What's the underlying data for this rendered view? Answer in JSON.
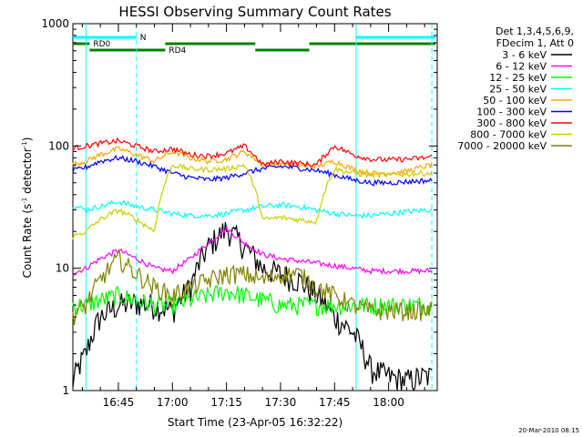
{
  "chart_data": {
    "type": "line",
    "title": "HESSI Observing Summary Count Rates",
    "xlabel": "Start Time (23-Apr-05 16:32:22)",
    "ylabel": "Count Rate (s",
    "ylabel_sup1": "-1",
    "ylabel_mid": " detector",
    "ylabel_sup2": "-1",
    "ylabel_end": ")",
    "y_scale": "log",
    "ylim": [
      1,
      1000
    ],
    "xlim": [
      "16:32:22",
      "18:13:30"
    ],
    "y_ticks": [
      "1",
      "10",
      "100",
      "1000"
    ],
    "x_ticks": [
      "16:45",
      "17:00",
      "17:15",
      "17:30",
      "17:45",
      "18:00"
    ],
    "legend_header": [
      "Det 1,3,4,5,6,9,",
      "FDecim 1, Att 0"
    ],
    "legend_placement": "right",
    "flags": [
      {
        "label": "N",
        "color": "#00ffff",
        "segments": [
          [
            "16:32",
            "16:50"
          ],
          [
            "17:51",
            "18:13"
          ]
        ]
      },
      {
        "label": "RD0",
        "color": "#008000",
        "segments": [
          [
            "16:32",
            "16:37"
          ],
          [
            "16:58",
            "17:23"
          ],
          [
            "17:38",
            "18:13"
          ]
        ]
      },
      {
        "label": "RD4",
        "color": "#008000",
        "segments": [
          [
            "16:37",
            "16:58"
          ],
          [
            "17:23",
            "17:38"
          ]
        ]
      }
    ],
    "boundaries_solid": [
      "16:36",
      "17:51"
    ],
    "boundaries_dashed": [
      "16:50",
      "18:12"
    ],
    "series": [
      {
        "name": "3 - 6 keV",
        "color": "#000000",
        "x": [
          "16:32",
          "16:36",
          "16:40",
          "16:45",
          "16:50",
          "16:55",
          "17:00",
          "17:05",
          "17:10",
          "17:15",
          "17:20",
          "17:25",
          "17:30",
          "17:35",
          "17:40",
          "17:45",
          "17:50",
          "17:55",
          "18:00",
          "18:05",
          "18:10",
          "18:12"
        ],
        "values": [
          1.1,
          2,
          4,
          5,
          5.2,
          5,
          4.5,
          7,
          15,
          21,
          15,
          10,
          9,
          8,
          6,
          4,
          3,
          1.5,
          1.3,
          1.2,
          1.3,
          1.3
        ]
      },
      {
        "name": "6 - 12 keV",
        "color": "#ff00ff",
        "x": [
          "16:32",
          "16:36",
          "16:40",
          "16:45",
          "16:50",
          "16:55",
          "17:00",
          "17:05",
          "17:10",
          "17:15",
          "17:20",
          "17:25",
          "17:30",
          "17:35",
          "17:40",
          "17:45",
          "17:50",
          "17:55",
          "18:00",
          "18:05",
          "18:10",
          "18:12"
        ],
        "values": [
          9,
          10,
          12,
          14,
          12,
          10,
          9.5,
          12,
          16,
          21,
          16,
          13,
          12,
          11.5,
          11,
          10.5,
          10,
          9.5,
          9.5,
          9.5,
          9.5,
          9.5
        ]
      },
      {
        "name": "12 - 25 keV",
        "color": "#00ff00",
        "x": [
          "16:32",
          "16:36",
          "16:40",
          "16:45",
          "16:50",
          "16:55",
          "17:00",
          "17:05",
          "17:10",
          "17:15",
          "17:20",
          "17:25",
          "17:30",
          "17:35",
          "17:40",
          "17:45",
          "17:50",
          "17:55",
          "18:00",
          "18:05",
          "18:10",
          "18:12"
        ],
        "values": [
          5,
          5,
          5.5,
          6,
          5.5,
          5,
          5,
          5.5,
          6,
          6.5,
          6,
          5.5,
          5,
          5,
          5,
          5,
          5,
          5,
          5,
          5,
          5,
          5
        ]
      },
      {
        "name": "25 - 50 keV",
        "color": "#00ffff",
        "x": [
          "16:32",
          "16:36",
          "16:40",
          "16:45",
          "16:50",
          "16:55",
          "17:00",
          "17:05",
          "17:10",
          "17:15",
          "17:20",
          "17:25",
          "17:30",
          "17:35",
          "17:40",
          "17:45",
          "17:50",
          "17:55",
          "18:00",
          "18:05",
          "18:10",
          "18:12"
        ],
        "values": [
          33,
          30,
          32,
          35,
          32,
          30,
          28,
          27,
          27,
          28,
          30,
          32,
          33,
          32,
          30,
          28,
          27,
          27,
          28,
          29,
          30,
          30
        ]
      },
      {
        "name": "50 - 100 keV",
        "color": "#ffa500",
        "x": [
          "16:32",
          "16:36",
          "16:40",
          "16:45",
          "16:50",
          "16:55",
          "17:00",
          "17:05",
          "17:10",
          "17:15",
          "17:20",
          "17:25",
          "17:30",
          "17:35",
          "17:40",
          "17:45",
          "17:50",
          "17:55",
          "18:00",
          "18:05",
          "18:10",
          "18:12"
        ],
        "values": [
          70,
          75,
          85,
          95,
          85,
          75,
          90,
          80,
          75,
          78,
          90,
          70,
          72,
          70,
          68,
          75,
          65,
          60,
          60,
          62,
          68,
          70
        ]
      },
      {
        "name": "100 - 300 keV",
        "color": "#0000ff",
        "x": [
          "16:32",
          "16:36",
          "16:40",
          "16:45",
          "16:50",
          "16:55",
          "17:00",
          "17:05",
          "17:10",
          "17:15",
          "17:20",
          "17:25",
          "17:30",
          "17:35",
          "17:40",
          "17:45",
          "17:50",
          "17:55",
          "18:00",
          "18:05",
          "18:10",
          "18:12"
        ],
        "values": [
          62,
          67,
          75,
          80,
          75,
          68,
          60,
          55,
          53,
          55,
          60,
          65,
          68,
          66,
          63,
          58,
          53,
          50,
          50,
          51,
          52,
          52
        ]
      },
      {
        "name": "300 - 800 keV",
        "color": "#ff0000",
        "x": [
          "16:32",
          "16:36",
          "16:40",
          "16:45",
          "16:50",
          "16:55",
          "17:00",
          "17:05",
          "17:10",
          "17:15",
          "17:20",
          "17:25",
          "17:30",
          "17:35",
          "17:40",
          "17:45",
          "17:50",
          "17:55",
          "18:00",
          "18:05",
          "18:10",
          "18:12"
        ],
        "values": [
          95,
          100,
          105,
          110,
          100,
          90,
          95,
          85,
          83,
          87,
          100,
          70,
          75,
          72,
          70,
          100,
          85,
          78,
          77,
          78,
          80,
          82
        ]
      },
      {
        "name": "800 - 7000 keV",
        "color": "#cccc00",
        "x": [
          "16:32",
          "16:36",
          "16:40",
          "16:45",
          "16:50",
          "16:55",
          "17:00",
          "17:05",
          "17:10",
          "17:15",
          "17:20",
          "17:25",
          "17:30",
          "17:35",
          "17:40",
          "17:45",
          "17:50",
          "17:55",
          "18:00",
          "18:05",
          "18:10",
          "18:12"
        ],
        "values": [
          18,
          20,
          25,
          30,
          25,
          20,
          70,
          65,
          64,
          65,
          70,
          25,
          26,
          25,
          24,
          65,
          60,
          58,
          58,
          59,
          60,
          60
        ]
      },
      {
        "name": "7000 - 20000 keV",
        "color": "#808000",
        "x": [
          "16:32",
          "16:36",
          "16:40",
          "16:45",
          "16:50",
          "16:55",
          "17:00",
          "17:05",
          "17:10",
          "17:15",
          "17:20",
          "17:25",
          "17:30",
          "17:35",
          "17:40",
          "17:45",
          "17:50",
          "17:55",
          "18:00",
          "18:05",
          "18:10",
          "18:12"
        ],
        "values": [
          4,
          5,
          8,
          12,
          9,
          7,
          6,
          7,
          8,
          9,
          9,
          8,
          9,
          9,
          7,
          6,
          5,
          4.5,
          4.5,
          4.5,
          4.5,
          4.5
        ]
      }
    ]
  },
  "footer_timestamp": "20-Mar-2010 08:15"
}
